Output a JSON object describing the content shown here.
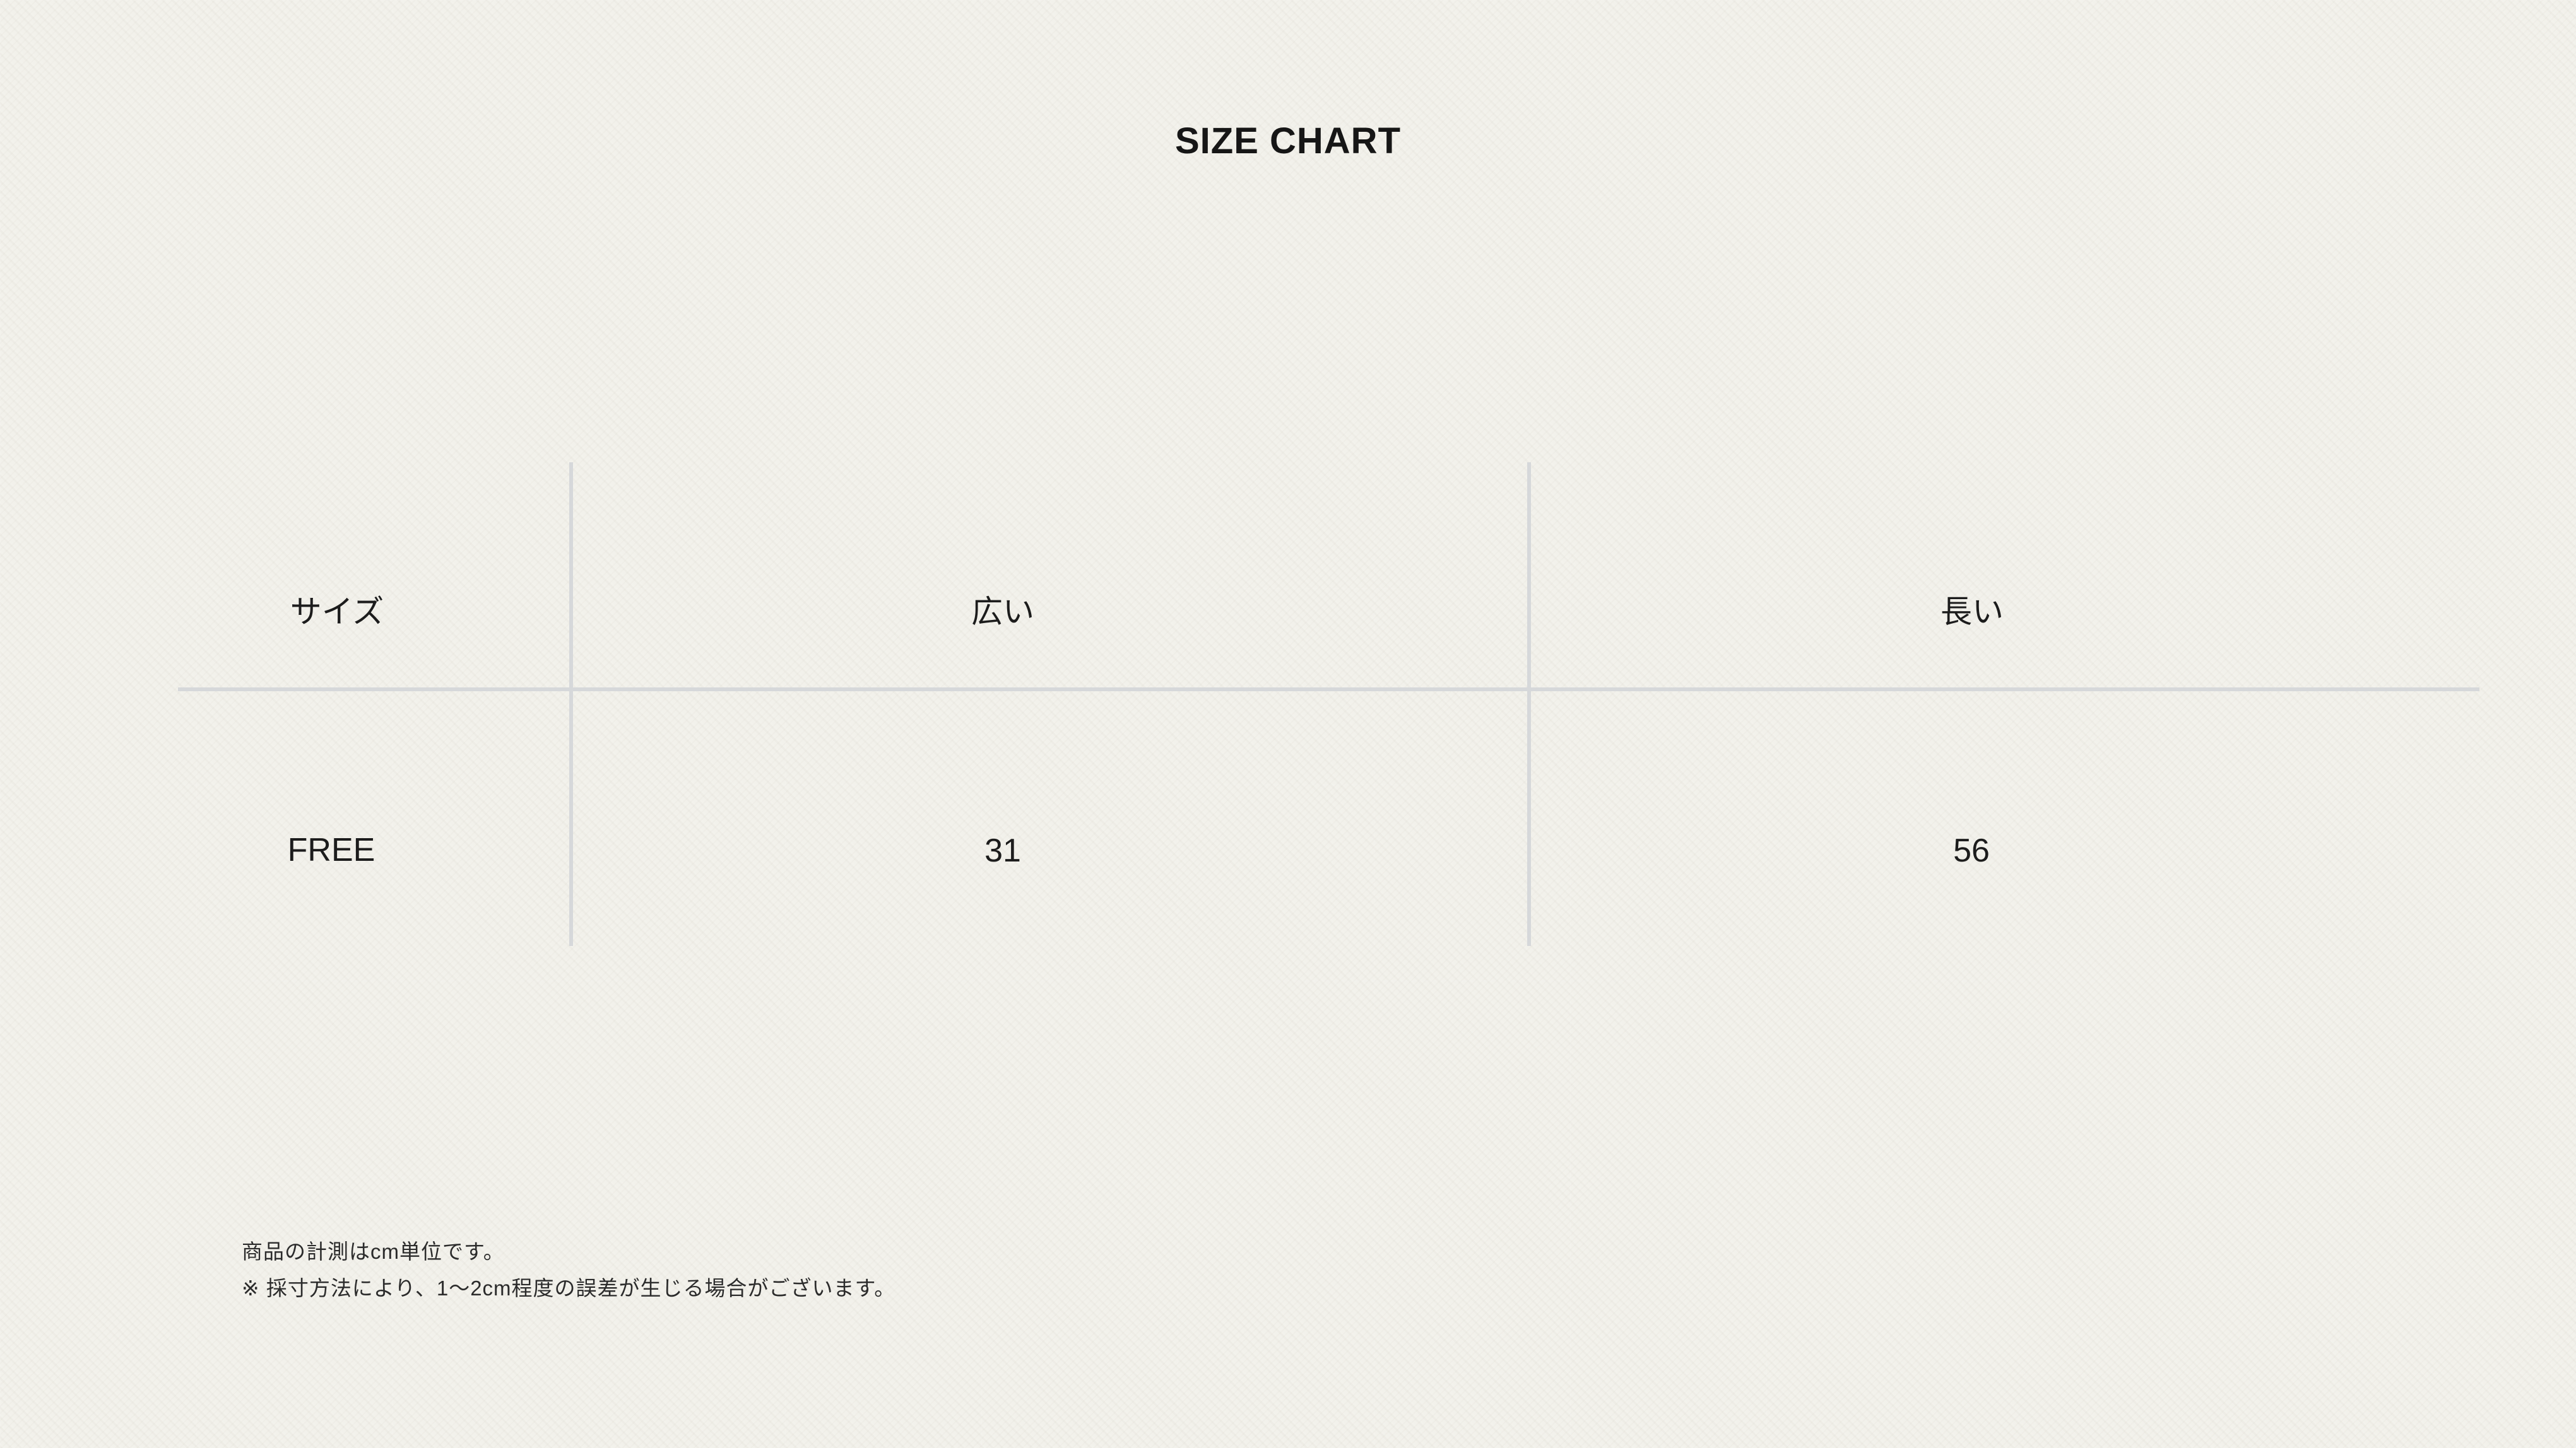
{
  "title": "SIZE CHART",
  "colors": {
    "background": "#f2f1eb",
    "divider": "#d6d8da",
    "title_text": "#161616",
    "cell_text": "#1c1c1c",
    "note_text": "#2b2b2b"
  },
  "chart_data": {
    "type": "table",
    "title": "SIZE CHART",
    "columns": [
      "サイズ",
      "広い",
      "長い"
    ],
    "rows": [
      [
        "FREE",
        "31",
        "56"
      ]
    ]
  },
  "notes": [
    "商品の計測はcm単位です。",
    "※ 採寸方法により、1〜2cm程度の誤差が生じる場合がございます。"
  ]
}
